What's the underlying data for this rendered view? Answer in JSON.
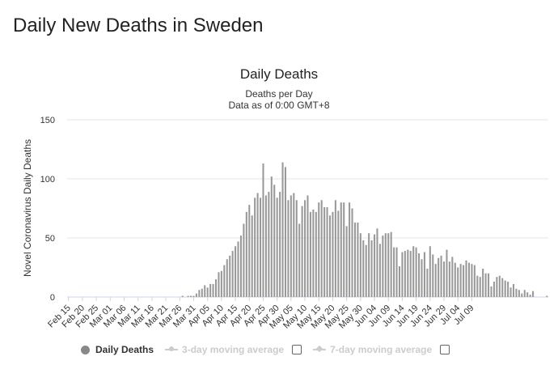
{
  "page": {
    "title": "Daily New Deaths in Sweden"
  },
  "chart_data": {
    "type": "bar",
    "title": "Daily Deaths",
    "subtitle_lines": [
      "Deaths per Day",
      "Data as of 0:00 GMT+8"
    ],
    "ylabel": "Novel Coronavirus Daily Deaths",
    "xlabel": "",
    "ylim": [
      0,
      150
    ],
    "yticks": [
      0,
      50,
      100,
      150
    ],
    "grid": true,
    "legend_position": "bottom",
    "bar_color": "#999999",
    "tick_labels": [
      "Feb 15",
      "Feb 20",
      "Feb 25",
      "Mar 01",
      "Mar 06",
      "Mar 11",
      "Mar 16",
      "Mar 21",
      "Mar 26",
      "Mar 31",
      "Apr 05",
      "Apr 10",
      "Apr 15",
      "Apr 20",
      "Apr 25",
      "Apr 30",
      "May 05",
      "May 10",
      "May 15",
      "May 20",
      "May 25",
      "May 30",
      "Jun 04",
      "Jun 09",
      "Jun 14",
      "Jun 19",
      "Jun 24",
      "Jun 29",
      "Jul 04",
      "Jul 09"
    ],
    "series": [
      {
        "name": "Daily Deaths",
        "start_date": "Feb 15",
        "values": [
          0,
          0,
          0,
          0,
          0,
          0,
          0,
          0,
          0,
          0,
          0,
          0,
          0,
          0,
          0,
          0,
          0,
          0,
          0,
          0,
          0,
          0,
          0,
          0,
          0,
          0,
          0,
          0,
          0,
          0,
          0,
          0,
          0,
          0,
          0,
          0,
          0,
          0,
          0,
          0,
          0,
          1,
          0,
          1,
          1,
          1,
          3,
          6,
          7,
          10,
          8,
          11,
          11,
          15,
          21,
          22,
          27,
          32,
          35,
          39,
          43,
          47,
          52,
          62,
          72,
          78,
          69,
          84,
          88,
          84,
          113,
          86,
          89,
          102,
          95,
          84,
          89,
          114,
          110,
          82,
          86,
          88,
          82,
          62,
          77,
          82,
          86,
          72,
          74,
          72,
          80,
          82,
          76,
          76,
          69,
          72,
          82,
          73,
          80,
          80,
          60,
          80,
          75,
          63,
          63,
          54,
          48,
          44,
          54,
          48,
          53,
          58,
          45,
          52,
          54,
          54,
          55,
          42,
          42,
          26,
          38,
          39,
          40,
          39,
          43,
          42,
          37,
          32,
          38,
          24,
          43,
          36,
          28,
          33,
          35,
          30,
          40,
          30,
          34,
          29,
          25,
          28,
          27,
          31,
          29,
          28,
          27,
          18,
          17,
          24,
          20,
          20,
          9,
          13,
          17,
          18,
          16,
          14,
          13,
          8,
          11,
          7,
          6,
          3,
          6,
          4,
          2,
          5,
          0,
          0,
          0,
          0,
          1
        ]
      },
      {
        "name": "3-day moving average"
      },
      {
        "name": "7-day moving average"
      }
    ]
  },
  "legend": {
    "items": [
      {
        "label": "Daily Deaths",
        "icon": "circle-icon",
        "active": true
      },
      {
        "label": "3-day moving average",
        "icon": "line-circle-icon",
        "active": false
      },
      {
        "label": "7-day moving average",
        "icon": "line-diamond-icon",
        "active": false
      }
    ]
  }
}
